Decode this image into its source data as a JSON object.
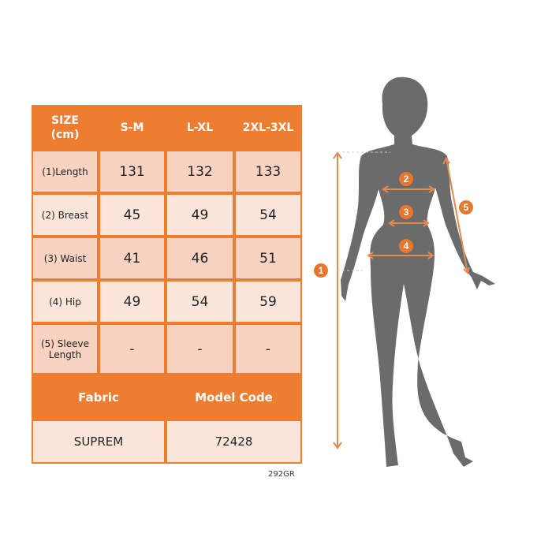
{
  "table": {
    "header": [
      "SIZE\n(cm)",
      "S-M",
      "L-XL",
      "2XL-3XL"
    ],
    "header_label_line1": "SIZE",
    "header_label_line2": "(cm)",
    "rows": [
      {
        "label": "(1)Length",
        "values": [
          "131",
          "132",
          "133"
        ]
      },
      {
        "label": "(2) Breast",
        "values": [
          "45",
          "49",
          "54"
        ]
      },
      {
        "label": "(3) Waist",
        "values": [
          "41",
          "46",
          "51"
        ]
      },
      {
        "label": "(4) Hip",
        "values": [
          "49",
          "54",
          "59"
        ]
      },
      {
        "label_line1": "(5) Sleeve",
        "label_line2": "Length",
        "values": [
          "-",
          "-",
          "-"
        ]
      }
    ],
    "fabric_label": "Fabric",
    "model_code_label": "Model Code",
    "fabric_value": "SUPREM",
    "model_code_value": "72428"
  },
  "product_code": "292GR",
  "figure": {
    "markers": [
      "1",
      "2",
      "3",
      "4",
      "5"
    ]
  },
  "colors": {
    "accent": "#ED7D31",
    "row_dark": "#F8D3C2",
    "row_light": "#FCE6DC",
    "silhouette": "#6B6B6B"
  }
}
